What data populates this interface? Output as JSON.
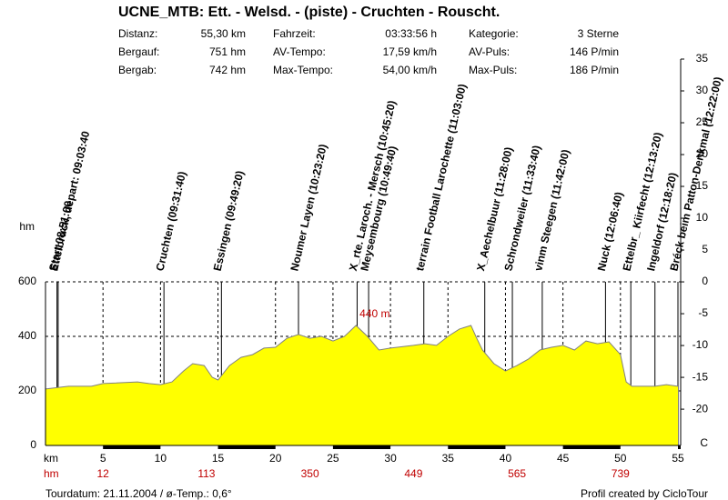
{
  "chart_data": {
    "type": "area",
    "title": "UCNE_MTB: Ett. - Welsd. - (piste) - Cruchten - Rouscht.",
    "stats": [
      [
        [
          "Distanz:",
          "55,30 km"
        ],
        [
          "Fahrzeit:",
          "03:33:56 h"
        ],
        [
          "Kategorie:",
          "3 Sterne"
        ]
      ],
      [
        [
          "Bergauf:",
          "751 hm"
        ],
        [
          "AV-Tempo:",
          "17,59 km/h"
        ],
        [
          "AV-Puls:",
          "146 P/min"
        ]
      ],
      [
        [
          "Bergab:",
          "742 hm"
        ],
        [
          "Max-Tempo:",
          "54,00 km/h"
        ],
        [
          "Max-Puls:",
          "186 P/min"
        ]
      ]
    ],
    "x_label": "km",
    "y_label": "hm",
    "y2_label": "C",
    "max_label": "440 m",
    "x": [
      0,
      2,
      4,
      5,
      8,
      9,
      10,
      11,
      12,
      12.8,
      13.8,
      14.5,
      15,
      16,
      17,
      18,
      19,
      20,
      21,
      22,
      23,
      24,
      25,
      26,
      27,
      28,
      29,
      30,
      32,
      33,
      34,
      35,
      36,
      37,
      37.5,
      38,
      39,
      40,
      41,
      42,
      43,
      44,
      45,
      46,
      47,
      48,
      49,
      50,
      50.5,
      51,
      53,
      54,
      55
    ],
    "series": [
      {
        "name": "hm",
        "color": "#ffff00",
        "values": [
          207,
          217,
          217,
          227,
          233,
          227,
          223,
          233,
          273,
          300,
          293,
          250,
          240,
          293,
          323,
          333,
          357,
          360,
          393,
          407,
          393,
          400,
          383,
          400,
          440,
          400,
          350,
          357,
          367,
          373,
          367,
          400,
          427,
          440,
          393,
          350,
          300,
          273,
          293,
          317,
          350,
          360,
          367,
          350,
          383,
          373,
          380,
          333,
          233,
          217,
          217,
          223,
          217
        ]
      }
    ],
    "xlim": [
      0,
      55
    ],
    "xticks": [
      5,
      10,
      15,
      20,
      25,
      30,
      35,
      40,
      45,
      50,
      55
    ],
    "ylim": [
      0,
      600
    ],
    "yticks": [
      0,
      200,
      400,
      600
    ],
    "y2lim": [
      -25.7,
      35
    ],
    "y2ticks": [
      35,
      30,
      25,
      20,
      15,
      10,
      5,
      0,
      -5,
      -10,
      -15,
      -20
    ],
    "grid": true,
    "climb": {
      "x": [
        5,
        14,
        23,
        32,
        41,
        50
      ],
      "labels": [
        12,
        113,
        350,
        449,
        565,
        739
      ]
    },
    "waypoints": [
      {
        "label": "Start 08:51:00",
        "km": 1.0
      },
      {
        "label": "Ettelbruck, depart: 09:03:40",
        "km": 1.1
      },
      {
        "label": "Cruchten (09:31:40)",
        "km": 10.3
      },
      {
        "label": "Essingen (09:49:20)",
        "km": 15.3
      },
      {
        "label": "Noumer Layen (10:23:20)",
        "km": 22.0
      },
      {
        "label": "X_rte. Laroch. - Mersch (10:45:20)",
        "km": 27.1
      },
      {
        "label": "Meysembourg (10:49:40)",
        "km": 28.1
      },
      {
        "label": "terrain Football Larochette (11:03:00)",
        "km": 32.9
      },
      {
        "label": "X_Aechelbuur (11:28:00)",
        "km": 38.2
      },
      {
        "label": "Schrondweiler (11:33:40)",
        "km": 40.6
      },
      {
        "label": "vinm Steegen (11:42:00)",
        "km": 43.2
      },
      {
        "label": "Nuck (12:06:40)",
        "km": 48.7
      },
      {
        "label": "Ettelbr_ Kiirfecht (12:13:20)",
        "km": 50.9
      },
      {
        "label": "Ingeldorf (12:18:20)",
        "km": 53.0
      },
      {
        "label": "Bréck beim Patton-Denkmal (12:22:00)",
        "km": 55.0
      }
    ],
    "footer_left": "Tourdatum: 21.11.2004  /  ø-Temp.: 0,6°",
    "footer_right": "Profil created by CicloTour"
  }
}
